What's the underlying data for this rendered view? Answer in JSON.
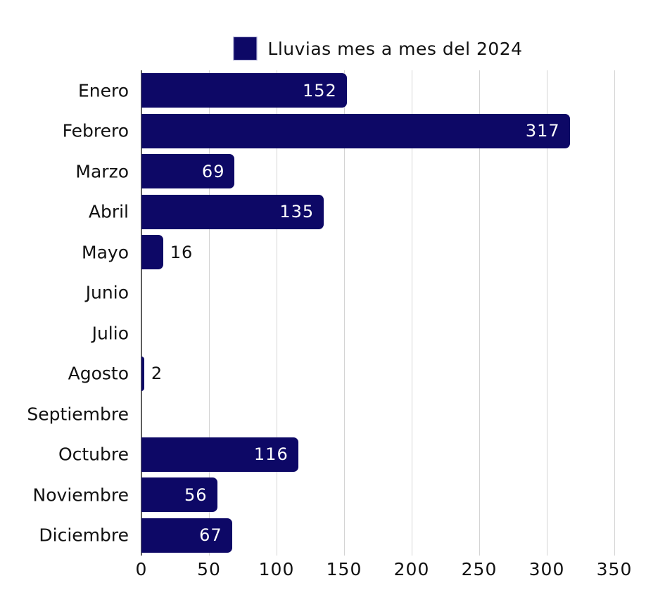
{
  "chart_data": {
    "type": "bar",
    "orientation": "horizontal",
    "title": "Lluvias mes a mes del 2024",
    "legend_label": "Lluvias mes a mes del 2024",
    "legend_position": "top-center",
    "categories": [
      "Enero",
      "Febrero",
      "Marzo",
      "Abril",
      "Mayo",
      "Junio",
      "Julio",
      "Agosto",
      "Septiembre",
      "Octubre",
      "Noviembre",
      "Diciembre"
    ],
    "values": [
      152,
      317,
      69,
      135,
      16,
      0,
      0,
      2,
      0,
      116,
      56,
      67
    ],
    "xlabel": "",
    "ylabel": "",
    "xlim": [
      0,
      350
    ],
    "xticks": [
      0,
      50,
      100,
      150,
      200,
      250,
      300,
      350
    ],
    "grid": true,
    "colors": {
      "bar": "#0d0866",
      "value_label_inside": "#ffffff",
      "value_label_outside": "#111111",
      "gridline": "#d4d4d4",
      "axis_line": "#5f5f5f",
      "text": "#111111",
      "background": "#ffffff"
    }
  }
}
